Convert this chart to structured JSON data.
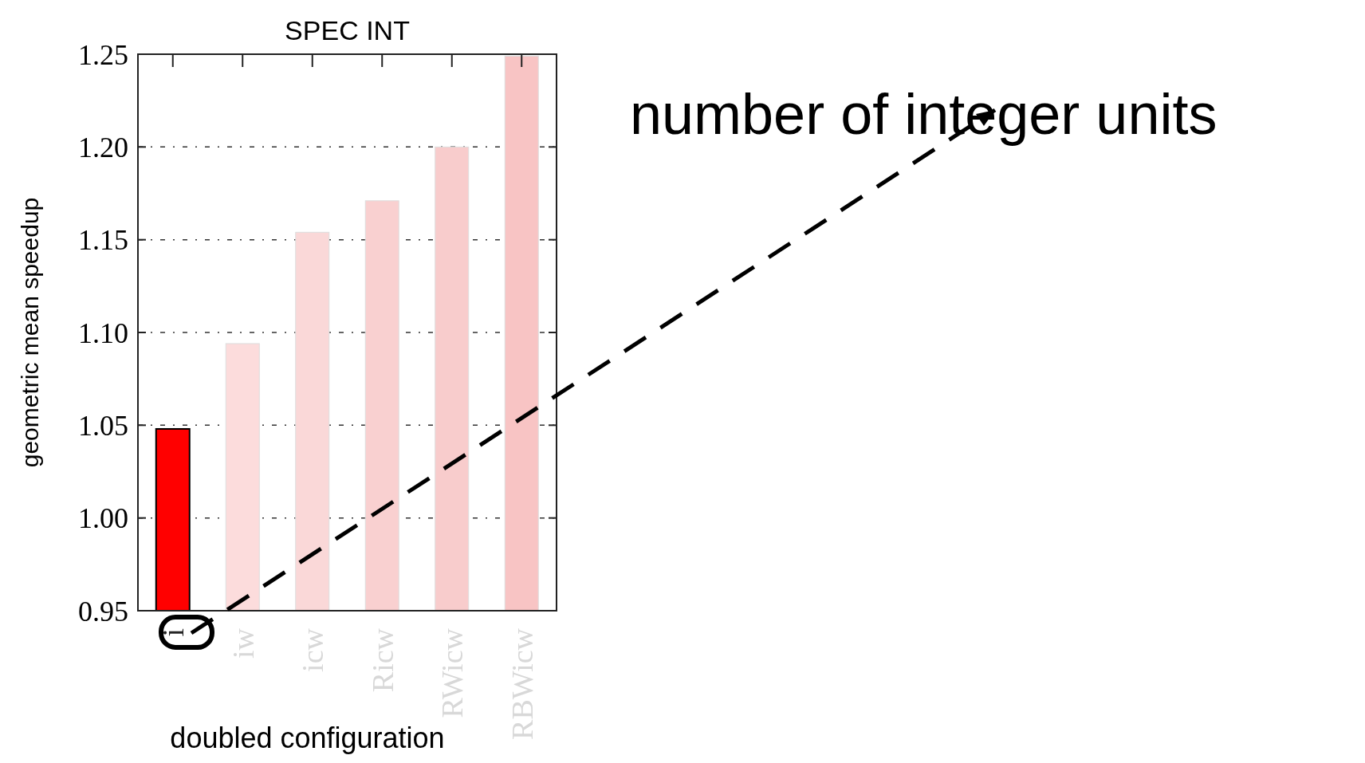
{
  "chart_data": {
    "type": "bar",
    "title": "SPEC INT",
    "xlabel": "doubled configuration",
    "ylabel": "geometric mean speedup",
    "categories": [
      "i",
      "iw",
      "icw",
      "Ricw",
      "RWicw",
      "RBWicw"
    ],
    "values": [
      1.048,
      1.094,
      1.154,
      1.171,
      1.2,
      1.249
    ],
    "colors": [
      "#ff0000",
      "#fcdcdc",
      "#fad8d8",
      "#f9d0d0",
      "#f8cccc",
      "#f8c4c4"
    ],
    "ylim": [
      0.95,
      1.25
    ],
    "yticks": [
      0.95,
      {
        "value": 1,
        "label": "1.00"
      },
      1.05,
      {
        "value": 1.1,
        "label": "1.10"
      },
      1.15,
      {
        "value": 1.2,
        "label": "1.20"
      },
      1.25
    ],
    "grid": "y",
    "annotations": [
      "number of integer units"
    ]
  }
}
